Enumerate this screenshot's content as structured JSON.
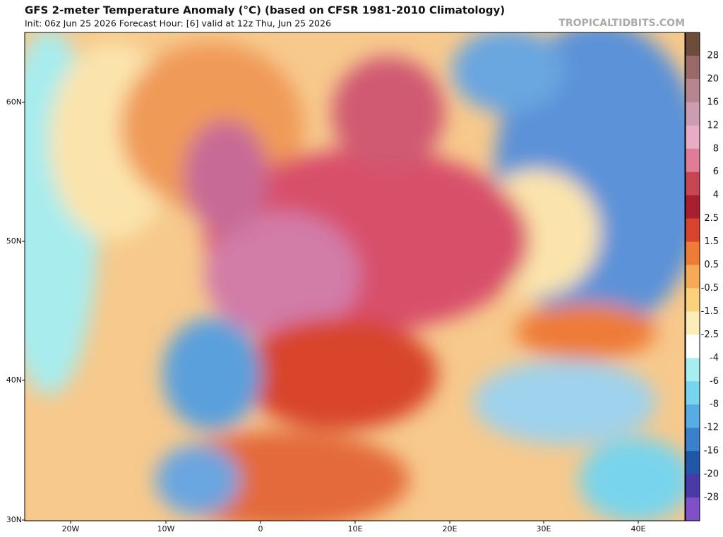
{
  "header": {
    "title": "GFS 2-meter Temperature Anomaly (°C) (based on CFSR 1981-2010 Climatology)",
    "subtitle": "Init: 06z Jun 25 2026   Forecast Hour: [6]   valid at 12z Thu, Jun 25 2026",
    "watermark": "TROPICALTIDBITS.COM"
  },
  "map": {
    "lat_labels": [
      "60N",
      "50N",
      "40N",
      "30N"
    ],
    "lon_labels": [
      "20W",
      "10W",
      "0",
      "10E",
      "20E",
      "30E",
      "40E"
    ]
  },
  "colorbar": {
    "labels": [
      "28",
      "20",
      "16",
      "12",
      "8",
      "6",
      "4",
      "2.5",
      "1.5",
      "0.5",
      "-0.5",
      "-1.5",
      "-2.5",
      "-4",
      "-6",
      "-8",
      "-12",
      "-16",
      "-20",
      "-28"
    ],
    "colors": [
      "#6e4c3c",
      "#9a6a6a",
      "#b58690",
      "#cc9cb0",
      "#e8acc4",
      "#e07c98",
      "#c84552",
      "#a82030",
      "#d8452c",
      "#ee7c38",
      "#f6aa58",
      "#fad27e",
      "#fcedb8",
      "#ffffff",
      "#a6eef0",
      "#78d4ec",
      "#58acE4",
      "#3a80cc",
      "#2256a8",
      "#4a3aa8",
      "#8050c8"
    ]
  }
}
